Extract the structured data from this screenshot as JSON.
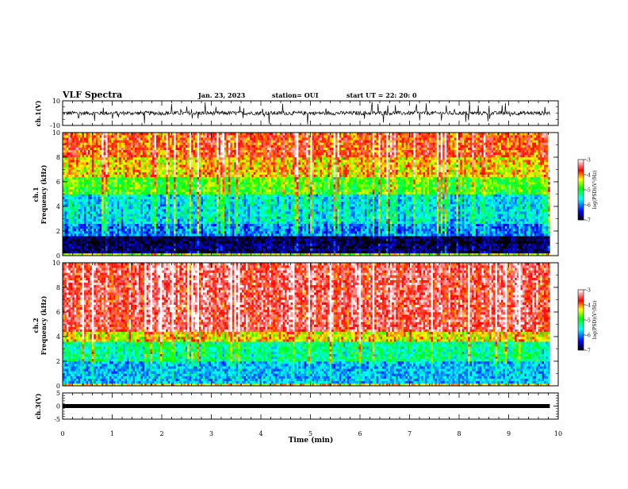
{
  "header": {
    "title": "VLF Spectra",
    "date": "Jan. 23, 2023",
    "station": "station= OUI",
    "start": "start  UT =  22: 20: 0"
  },
  "colors": {
    "colormap": [
      "#000000",
      "#0000ff",
      "#00ffff",
      "#00ff00",
      "#ffff00",
      "#ff0000",
      "#ffffff"
    ],
    "trace": "#000000",
    "frame": "#000000"
  },
  "chart_data": [
    {
      "type": "line",
      "panel": "ch.1(V)",
      "ylabel": "ch.1(V)",
      "ylim": [
        -10,
        10
      ],
      "yticks": [
        "10",
        "-10"
      ],
      "xlim": [
        0,
        10
      ],
      "baseline": 0,
      "description_values": "noisy waveform roughly -3 to +3 V with spikes"
    },
    {
      "type": "heatmap",
      "panel": "ch.1 spectrogram",
      "ylabel": "ch.1 Frequency (kHz)",
      "ylim": [
        0,
        10
      ],
      "yticks": [
        "0",
        "2",
        "4",
        "6",
        "8",
        "10"
      ],
      "xlim": [
        0,
        10
      ],
      "colorbar": {
        "label": "log(PSD)(V²/Hz)",
        "range": [
          -7,
          -3
        ],
        "ticks": [
          "-3",
          "-4",
          "-5",
          "-6",
          "-7"
        ]
      },
      "bands": [
        {
          "f": [
            0.0,
            0.3
          ],
          "logpsd": -4.5
        },
        {
          "f": [
            0.3,
            1.0
          ],
          "logpsd": -6.8
        },
        {
          "f": [
            1.0,
            1.6
          ],
          "logpsd": -6.9
        },
        {
          "f": [
            1.6,
            2.6
          ],
          "logpsd": -6.0
        },
        {
          "f": [
            2.6,
            5.0
          ],
          "logpsd": -5.6
        },
        {
          "f": [
            5.0,
            6.5
          ],
          "logpsd": -4.8
        },
        {
          "f": [
            6.5,
            8.0
          ],
          "logpsd": -4.2
        },
        {
          "f": [
            8.0,
            10.0
          ],
          "logpsd": -3.8
        }
      ]
    },
    {
      "type": "heatmap",
      "panel": "ch.2 spectrogram",
      "ylabel": "ch.2 Frequency (kHz)",
      "ylim": [
        0,
        10
      ],
      "yticks": [
        "0",
        "2",
        "4",
        "6",
        "8",
        "10"
      ],
      "xlim": [
        0,
        10
      ],
      "colorbar": {
        "label": "log(PSD)(V²/Hz)",
        "range": [
          -7,
          -3
        ],
        "ticks": [
          "-3",
          "-4",
          "-5",
          "-6",
          "-7"
        ]
      },
      "bands": [
        {
          "f": [
            0.0,
            0.2
          ],
          "logpsd": -4.3
        },
        {
          "f": [
            0.2,
            2.0
          ],
          "logpsd": -5.8
        },
        {
          "f": [
            2.0,
            3.6
          ],
          "logpsd": -5.3
        },
        {
          "f": [
            3.6,
            4.5
          ],
          "logpsd": -4.3
        },
        {
          "f": [
            4.5,
            10.0
          ],
          "logpsd": -3.5
        }
      ]
    },
    {
      "type": "line",
      "panel": "ch.3(V)",
      "ylabel": "ch.3(V)",
      "ylim": [
        -5,
        5
      ],
      "yticks": [
        "5",
        "0",
        "-5"
      ],
      "xlim": [
        0,
        10
      ],
      "baseline": 0,
      "xlabel": "Time  (min)",
      "xticks": [
        "0",
        "1",
        "2",
        "3",
        "4",
        "5",
        "6",
        "7",
        "8",
        "9",
        "10"
      ]
    }
  ]
}
